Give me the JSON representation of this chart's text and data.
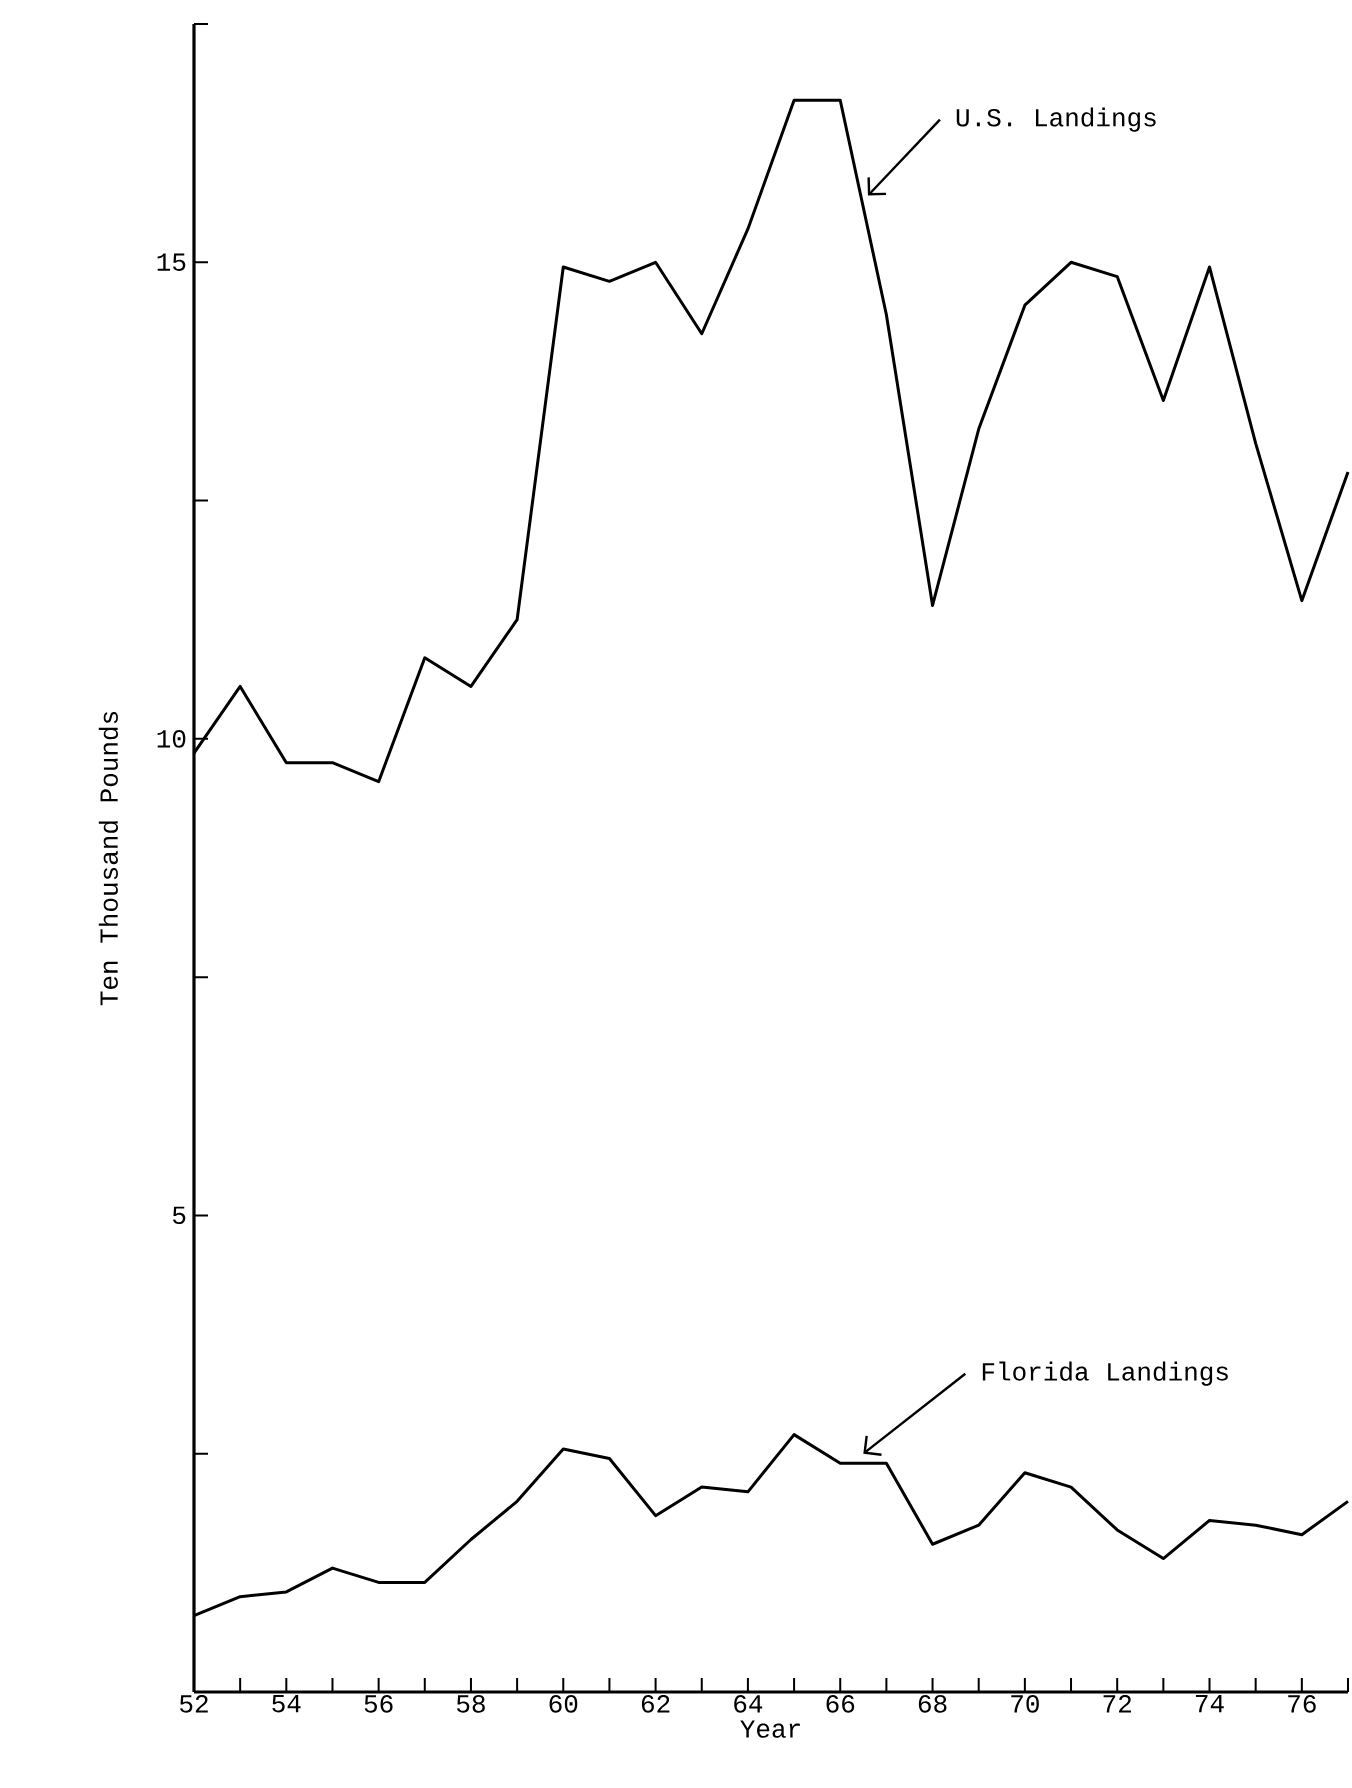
{
  "chart_data": {
    "type": "line",
    "xlabel": "Year",
    "ylabel": "Ten Thousand Pounds",
    "x": [
      52,
      53,
      54,
      55,
      56,
      57,
      58,
      59,
      60,
      61,
      62,
      63,
      64,
      65,
      66,
      67,
      68,
      69,
      70,
      71,
      72,
      73,
      74,
      75,
      76,
      77
    ],
    "series": [
      {
        "color": "#000000",
        "values": [
          9.85,
          10.55,
          9.75,
          9.75,
          9.55,
          10.85,
          10.55,
          11.25,
          14.95,
          14.8,
          15.0,
          14.25,
          15.35,
          16.7,
          16.7,
          14.45,
          11.4,
          13.25,
          14.55,
          15.0,
          14.85,
          13.55,
          14.95,
          13.1,
          11.45,
          12.8
        ]
      },
      {
        "color": "#000000",
        "values": [
          0.8,
          1.0,
          1.05,
          1.3,
          1.15,
          1.15,
          1.6,
          2.0,
          2.55,
          2.45,
          1.85,
          2.15,
          2.1,
          2.7,
          2.4,
          2.4,
          1.55,
          1.75,
          2.3,
          2.15,
          1.7,
          1.4,
          1.8,
          1.75,
          1.65,
          2.0
        ]
      }
    ],
    "xlim": [
      52,
      77
    ],
    "ylim": [
      0,
      17.5
    ],
    "xticks": [
      52,
      {
        "value": 53,
        "label": null
      },
      54,
      {
        "value": 55,
        "label": null
      },
      56,
      {
        "value": 57,
        "label": null
      },
      58,
      {
        "value": 59,
        "label": null
      },
      60,
      {
        "value": 61,
        "label": null
      },
      62,
      {
        "value": 63,
        "label": null
      },
      64,
      {
        "value": 65,
        "label": null
      },
      66,
      {
        "value": 67,
        "label": null
      },
      68,
      {
        "value": 69,
        "label": null
      },
      70,
      {
        "value": 71,
        "label": null
      },
      72,
      {
        "value": 73,
        "label": null
      },
      74,
      {
        "value": 75,
        "label": null
      },
      76,
      {
        "value": 77,
        "label": null
      }
    ],
    "yticks": [
      {
        "value": 2.5,
        "label": null
      },
      5,
      {
        "value": 7.5,
        "label": null
      },
      10,
      {
        "value": 12.5,
        "label": null
      },
      15,
      {
        "value": 17.5,
        "label": null
      }
    ],
    "annotations": [
      {
        "text": "U.S. Landings",
        "x": 66.6,
        "y": 15.7
      },
      {
        "text": "Florida Landings",
        "x": 66.5,
        "y": 2.5
      }
    ],
    "marker": "none",
    "line_style": "solid"
  }
}
